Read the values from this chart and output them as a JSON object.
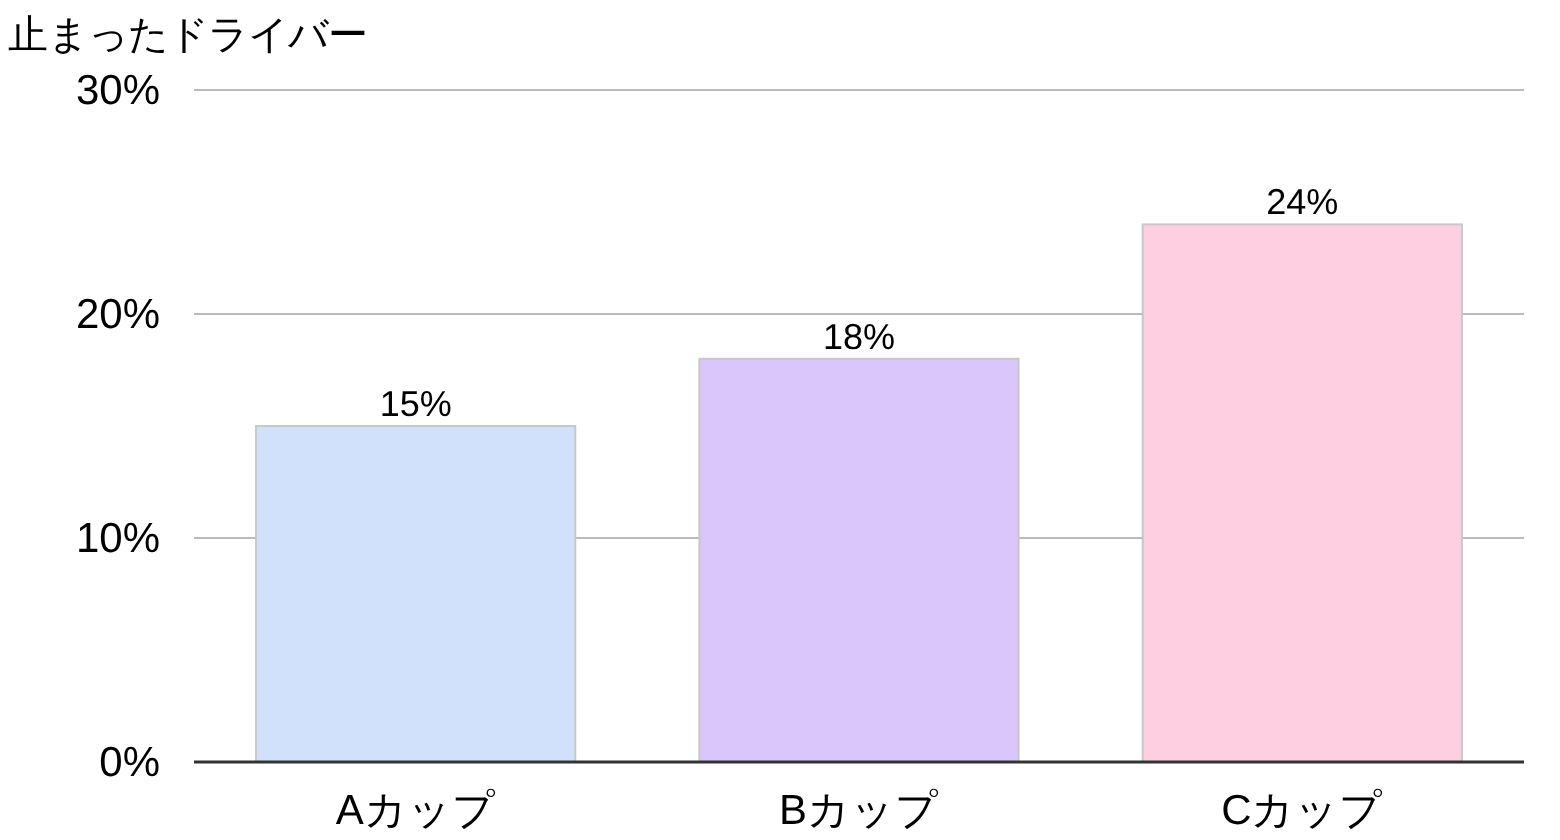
{
  "chart_data": {
    "type": "bar",
    "ylabel": "止まったドライバー",
    "categories": [
      "Aカップ",
      "Bカップ",
      "Cカップ"
    ],
    "values": [
      15,
      18,
      24
    ],
    "colors": [
      "#d2e1fb",
      "#dac6fb",
      "#fdcfe0"
    ],
    "value_labels": [
      "15%",
      "18%",
      "24%"
    ],
    "ylim": [
      0,
      30
    ],
    "yticks": [
      {
        "value": 0,
        "label": "0%"
      },
      {
        "value": 10,
        "label": "10%"
      },
      {
        "value": 20,
        "label": "20%"
      },
      {
        "value": 30,
        "label": "30%"
      }
    ],
    "grid": "y"
  }
}
